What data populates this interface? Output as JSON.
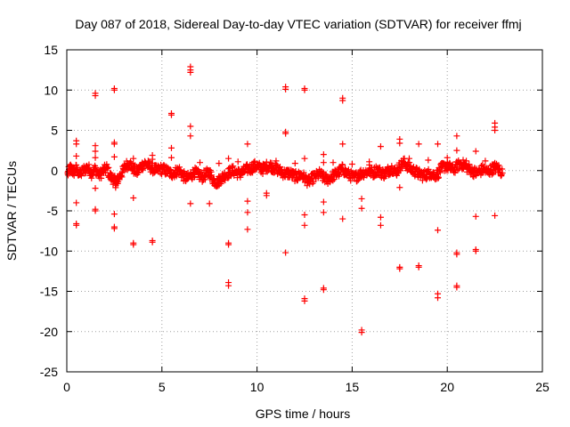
{
  "chart_data": {
    "type": "scatter",
    "title": "Day 087 of 2018, Sidereal Day-to-day VTEC variation (SDTVAR) for receiver ffmj",
    "xlabel": "GPS time / hours",
    "ylabel": "SDTVAR / TECUs",
    "xlim": [
      0,
      25
    ],
    "ylim": [
      -25,
      15
    ],
    "x_ticks": [
      0,
      5,
      10,
      15,
      20,
      25
    ],
    "x_tick_labels": [
      "0",
      "5",
      "10",
      "15",
      "20",
      "25"
    ],
    "y_ticks": [
      15,
      10,
      5,
      0,
      -5,
      -10,
      -15,
      -20,
      -25
    ],
    "y_tick_labels": [
      "15",
      "10",
      "5",
      "0",
      "-5",
      "-10",
      "-15",
      "-20",
      "-25"
    ],
    "grid": true,
    "marker": "plus",
    "color": "#ff0000",
    "band_note": "dense band of points near zero for 0-23 h",
    "band": [
      [
        0.05,
        -0.4
      ],
      [
        0.2,
        0.3
      ],
      [
        0.35,
        -0.2
      ],
      [
        0.5,
        0.2
      ],
      [
        0.7,
        -0.5
      ],
      [
        0.9,
        0.1
      ],
      [
        1.1,
        0.4
      ],
      [
        1.3,
        -0.3
      ],
      [
        1.5,
        0.2
      ],
      [
        1.7,
        -0.6
      ],
      [
        1.9,
        -0.1
      ],
      [
        2.1,
        0.3
      ],
      [
        2.3,
        -0.8
      ],
      [
        2.5,
        -1.2
      ],
      [
        2.6,
        -1.6
      ],
      [
        2.7,
        -1.0
      ],
      [
        2.9,
        -0.3
      ],
      [
        3.1,
        0.6
      ],
      [
        3.3,
        0.9
      ],
      [
        3.5,
        0.2
      ],
      [
        3.7,
        -0.2
      ],
      [
        3.9,
        0.5
      ],
      [
        4.1,
        0.9
      ],
      [
        4.3,
        0.6
      ],
      [
        4.5,
        0.3
      ],
      [
        4.7,
        0.0
      ],
      [
        4.9,
        0.2
      ],
      [
        5.1,
        0.1
      ],
      [
        5.3,
        -0.1
      ],
      [
        5.5,
        -0.4
      ],
      [
        5.7,
        -0.2
      ],
      [
        5.9,
        0.1
      ],
      [
        6.1,
        -0.6
      ],
      [
        6.3,
        -1.0
      ],
      [
        6.5,
        -0.7
      ],
      [
        6.7,
        -0.2
      ],
      [
        6.9,
        -0.5
      ],
      [
        7.1,
        -0.8
      ],
      [
        7.3,
        -0.5
      ],
      [
        7.5,
        -0.2
      ],
      [
        7.7,
        -1.2
      ],
      [
        7.9,
        -1.5
      ],
      [
        8.1,
        -1.0
      ],
      [
        8.3,
        -0.6
      ],
      [
        8.5,
        -0.3
      ],
      [
        8.7,
        0.0
      ],
      [
        8.9,
        -0.2
      ],
      [
        9.1,
        -0.4
      ],
      [
        9.3,
        -0.1
      ],
      [
        9.5,
        0.2
      ],
      [
        9.7,
        0.3
      ],
      [
        9.9,
        0.6
      ],
      [
        10.1,
        0.4
      ],
      [
        10.3,
        0.2
      ],
      [
        10.5,
        0.5
      ],
      [
        10.7,
        0.6
      ],
      [
        10.9,
        0.3
      ],
      [
        11.1,
        0.1
      ],
      [
        11.3,
        -0.2
      ],
      [
        11.5,
        -0.4
      ],
      [
        11.7,
        -0.3
      ],
      [
        11.9,
        -0.6
      ],
      [
        12.1,
        -0.8
      ],
      [
        12.3,
        -0.5
      ],
      [
        12.5,
        -0.9
      ],
      [
        12.7,
        -1.4
      ],
      [
        12.9,
        -1.0
      ],
      [
        13.1,
        -0.7
      ],
      [
        13.3,
        -0.4
      ],
      [
        13.5,
        -0.9
      ],
      [
        13.7,
        -1.1
      ],
      [
        13.9,
        -0.8
      ],
      [
        14.1,
        -0.5
      ],
      [
        14.3,
        -0.2
      ],
      [
        14.5,
        0.2
      ],
      [
        14.7,
        -0.3
      ],
      [
        14.9,
        -0.6
      ],
      [
        15.1,
        -0.9
      ],
      [
        15.3,
        -0.6
      ],
      [
        15.5,
        -0.3
      ],
      [
        15.7,
        -0.2
      ],
      [
        15.9,
        -0.1
      ],
      [
        16.1,
        -0.3
      ],
      [
        16.3,
        0.1
      ],
      [
        16.5,
        -0.2
      ],
      [
        16.7,
        -0.4
      ],
      [
        16.9,
        0.0
      ],
      [
        17.1,
        0.3
      ],
      [
        17.3,
        -0.2
      ],
      [
        17.5,
        0.5
      ],
      [
        17.7,
        1.0
      ],
      [
        17.9,
        0.6
      ],
      [
        18.1,
        0.2
      ],
      [
        18.3,
        -0.1
      ],
      [
        18.5,
        -0.4
      ],
      [
        18.7,
        -0.6
      ],
      [
        18.9,
        -0.5
      ],
      [
        19.1,
        -0.3
      ],
      [
        19.3,
        -0.6
      ],
      [
        19.5,
        -0.4
      ],
      [
        19.7,
        0.3
      ],
      [
        19.9,
        0.6
      ],
      [
        20.1,
        0.4
      ],
      [
        20.3,
        0.1
      ],
      [
        20.5,
        0.5
      ],
      [
        20.7,
        0.9
      ],
      [
        20.9,
        0.6
      ],
      [
        21.1,
        0.3
      ],
      [
        21.3,
        0.0
      ],
      [
        21.5,
        -0.3
      ],
      [
        21.7,
        -0.1
      ],
      [
        21.9,
        0.2
      ],
      [
        22.1,
        -0.2
      ],
      [
        22.3,
        0.1
      ],
      [
        22.5,
        0.4
      ],
      [
        22.7,
        0.2
      ],
      [
        22.9,
        -0.3
      ]
    ],
    "outliers": [
      [
        0.5,
        3.7
      ],
      [
        0.5,
        3.3
      ],
      [
        0.5,
        1.8
      ],
      [
        0.5,
        -4.0
      ],
      [
        0.5,
        -6.6
      ],
      [
        0.5,
        -6.8
      ],
      [
        1.5,
        9.6
      ],
      [
        1.5,
        9.3
      ],
      [
        1.5,
        3.1
      ],
      [
        1.5,
        2.4
      ],
      [
        1.5,
        1.6
      ],
      [
        1.5,
        -2.2
      ],
      [
        1.5,
        -4.8
      ],
      [
        1.5,
        -5.0
      ],
      [
        2.5,
        10.2
      ],
      [
        2.5,
        10.0
      ],
      [
        2.5,
        3.5
      ],
      [
        2.5,
        3.3
      ],
      [
        2.5,
        1.7
      ],
      [
        2.5,
        -5.4
      ],
      [
        2.5,
        -7.0
      ],
      [
        2.5,
        -7.2
      ],
      [
        3.5,
        1.5
      ],
      [
        3.5,
        -3.4
      ],
      [
        3.5,
        -9.0
      ],
      [
        3.5,
        -9.2
      ],
      [
        4.5,
        1.9
      ],
      [
        4.5,
        1.4
      ],
      [
        4.5,
        -8.7
      ],
      [
        4.5,
        -8.9
      ],
      [
        5.5,
        7.1
      ],
      [
        5.5,
        6.9
      ],
      [
        5.5,
        2.8
      ],
      [
        5.5,
        1.6
      ],
      [
        6.5,
        12.9
      ],
      [
        6.5,
        12.5
      ],
      [
        6.5,
        12.2
      ],
      [
        6.5,
        5.5
      ],
      [
        6.5,
        4.3
      ],
      [
        6.5,
        -4.1
      ],
      [
        7.5,
        -4.1
      ],
      [
        8.5,
        1.5
      ],
      [
        8.5,
        -9.0
      ],
      [
        8.5,
        -9.2
      ],
      [
        8.5,
        -13.9
      ],
      [
        8.5,
        -14.3
      ],
      [
        9.5,
        3.3
      ],
      [
        9.5,
        -3.8
      ],
      [
        9.5,
        -5.2
      ],
      [
        9.5,
        -7.3
      ],
      [
        10.5,
        -2.8
      ],
      [
        10.5,
        -3.1
      ],
      [
        11.5,
        10.4
      ],
      [
        11.5,
        10.1
      ],
      [
        11.5,
        4.8
      ],
      [
        11.5,
        4.6
      ],
      [
        11.5,
        -10.2
      ],
      [
        12.5,
        10.2
      ],
      [
        12.5,
        10.0
      ],
      [
        12.5,
        1.5
      ],
      [
        12.5,
        -5.5
      ],
      [
        12.5,
        -6.8
      ],
      [
        12.5,
        -15.9
      ],
      [
        12.5,
        -16.2
      ],
      [
        13.5,
        2.0
      ],
      [
        13.5,
        1.0
      ],
      [
        13.5,
        -3.9
      ],
      [
        13.5,
        -5.2
      ],
      [
        13.5,
        -14.6
      ],
      [
        13.5,
        -14.8
      ],
      [
        14.5,
        9.0
      ],
      [
        14.5,
        8.7
      ],
      [
        14.5,
        3.3
      ],
      [
        14.5,
        -6.0
      ],
      [
        15.5,
        -3.5
      ],
      [
        15.5,
        -4.7
      ],
      [
        15.5,
        -19.8
      ],
      [
        15.5,
        -20.1
      ],
      [
        15.9,
        1.1
      ],
      [
        15.9,
        0.7
      ],
      [
        16.5,
        3.0
      ],
      [
        16.5,
        -5.8
      ],
      [
        16.5,
        -6.8
      ],
      [
        17.5,
        3.9
      ],
      [
        17.5,
        3.4
      ],
      [
        17.5,
        -2.1
      ],
      [
        17.5,
        -12.0
      ],
      [
        17.5,
        -12.2
      ],
      [
        18.5,
        3.3
      ],
      [
        18.5,
        -11.8
      ],
      [
        18.5,
        -12.0
      ],
      [
        19.5,
        3.3
      ],
      [
        19.5,
        -7.4
      ],
      [
        19.5,
        -15.3
      ],
      [
        19.5,
        -15.8
      ],
      [
        20.5,
        4.3
      ],
      [
        20.5,
        2.5
      ],
      [
        20.5,
        -10.2
      ],
      [
        20.5,
        -10.4
      ],
      [
        20.5,
        -14.3
      ],
      [
        20.5,
        -14.5
      ],
      [
        21.5,
        2.4
      ],
      [
        21.5,
        -5.7
      ],
      [
        21.5,
        -9.8
      ],
      [
        21.5,
        -10.0
      ],
      [
        22.5,
        5.9
      ],
      [
        22.5,
        5.4
      ],
      [
        22.5,
        5.0
      ],
      [
        22.5,
        -5.6
      ],
      [
        19.0,
        1.3
      ],
      [
        20.0,
        1.6
      ],
      [
        21.0,
        1.2
      ],
      [
        22.0,
        1.2
      ],
      [
        18.0,
        1.5
      ],
      [
        14.0,
        1.0
      ],
      [
        15.0,
        0.8
      ],
      [
        11.0,
        1.2
      ],
      [
        12.0,
        0.9
      ],
      [
        7.0,
        1.0
      ],
      [
        8.0,
        0.9
      ],
      [
        9.0,
        1.1
      ]
    ]
  }
}
